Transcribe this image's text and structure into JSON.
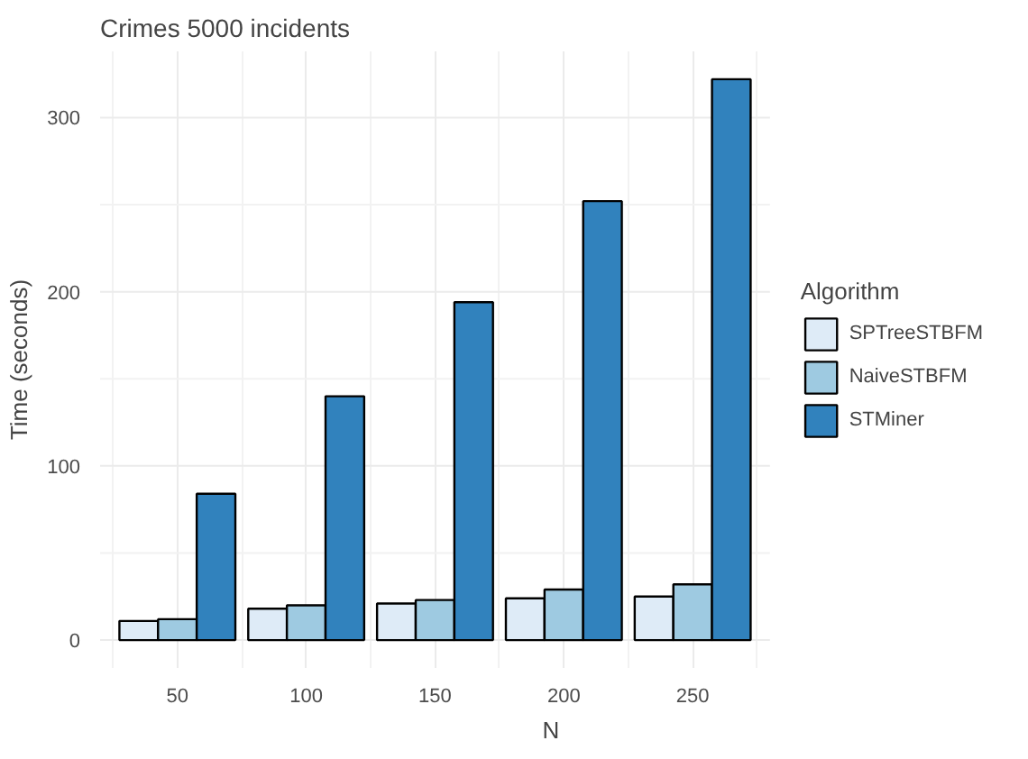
{
  "chart_data": {
    "type": "bar",
    "title": "Crimes 5000 incidents",
    "xlabel": "N",
    "ylabel": "Time (seconds)",
    "legend_title": "Algorithm",
    "categories": [
      "50",
      "100",
      "150",
      "200",
      "250"
    ],
    "series": [
      {
        "name": "SPTreeSTBFM",
        "color": "#deebf7",
        "values": [
          11,
          18,
          21,
          24,
          25
        ]
      },
      {
        "name": "NaiveSTBFM",
        "color": "#9ecae1",
        "values": [
          12,
          20,
          23,
          29,
          32
        ]
      },
      {
        "name": "STMiner",
        "color": "#3182bd",
        "values": [
          84,
          140,
          194,
          252,
          322
        ]
      }
    ],
    "ylim": [
      -16,
      338
    ],
    "yticks": [
      0,
      100,
      200,
      300
    ],
    "grid": true,
    "legend": "right"
  }
}
